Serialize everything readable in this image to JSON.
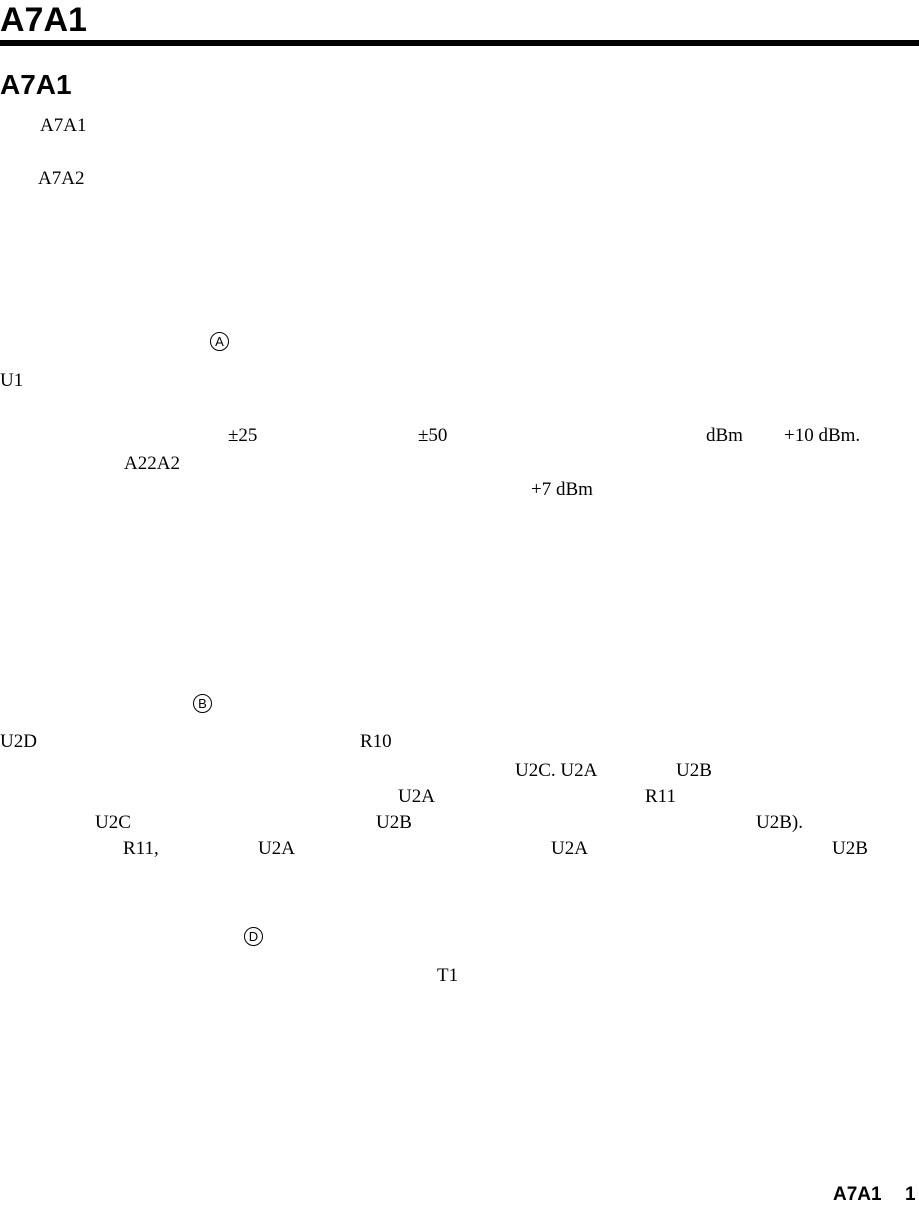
{
  "header": {
    "title": "A7A1"
  },
  "section": {
    "title": "A7A1"
  },
  "fragments": [
    "A7A1",
    "A7A2",
    "U1",
    "±25",
    "±50",
    "dBm",
    "+10 dBm.",
    "A22A2",
    "+7 dBm",
    "U2D",
    "R10",
    "U2C. U2A",
    "U2B",
    "U2A",
    "R11",
    "U2C",
    "U2B",
    "U2B).",
    "R11,",
    "U2A",
    "U2A",
    "U2B",
    "T1"
  ],
  "markers": [
    "A",
    "B",
    "D"
  ],
  "footer": {
    "label": "A7A1",
    "page": "1"
  }
}
